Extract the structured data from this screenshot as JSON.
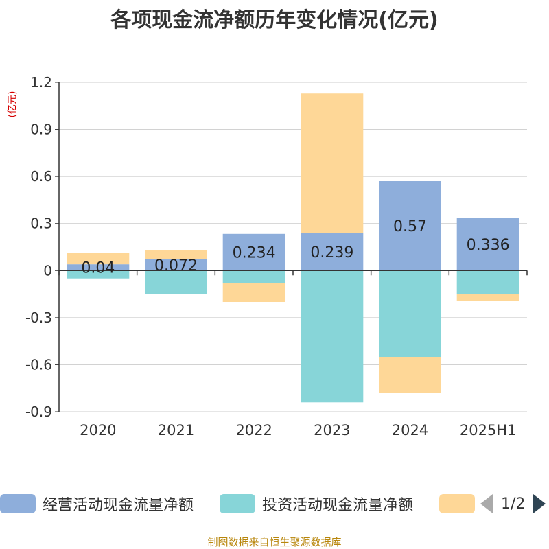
{
  "title": "各项现金流净额历年变化情况(亿元)",
  "unit_label": "(亿元)",
  "source": "制图数据来自恒生聚源数据库",
  "legend": {
    "pager_text": "1/2"
  },
  "chart_data": {
    "type": "bar",
    "stacked": true,
    "categories": [
      "2020",
      "2021",
      "2022",
      "2023",
      "2024",
      "2025H1"
    ],
    "ylim": [
      -0.9,
      1.2
    ],
    "yticks": [
      1.2,
      0.9,
      0.6,
      0.3,
      0,
      -0.3,
      -0.6,
      -0.9
    ],
    "ytick_labels": [
      "1.2",
      "0.9",
      "0.6",
      "0.3",
      "0",
      "-0.3",
      "-0.6",
      "-0.9"
    ],
    "grid": true,
    "legend_position": "bottom",
    "series": [
      {
        "name": "经营活动现金流量净额",
        "color": "#8eaedb",
        "values": [
          0.04,
          0.072,
          0.234,
          0.239,
          0.57,
          0.336
        ],
        "labels": [
          "0.04",
          "0.072",
          "0.234",
          "0.239",
          "0.57",
          "0.336"
        ]
      },
      {
        "name": "投资活动现金流量净额",
        "color": "#87d5d8",
        "values": [
          -0.05,
          -0.15,
          -0.08,
          -0.84,
          -0.55,
          -0.15
        ]
      },
      {
        "name": "",
        "color": "#fed797",
        "values": [
          0.075,
          0.06,
          -0.12,
          0.89,
          -0.23,
          -0.045
        ]
      }
    ]
  }
}
